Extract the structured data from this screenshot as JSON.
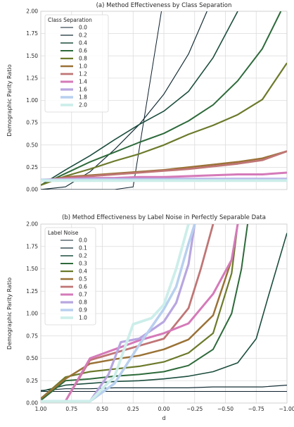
{
  "chart_data": [
    {
      "type": "line",
      "title": "(a) Method Effectiveness by Class Separation",
      "ylabel": "Demographic Parity Ratio",
      "xlabel": "",
      "ylim": [
        0,
        2.0
      ],
      "xlim": [
        1.0,
        -1.0
      ],
      "x_inverted": true,
      "grid": true,
      "yticks": [
        "0.00",
        "0.25",
        "0.50",
        "0.75",
        "1.00",
        "1.25",
        "1.50",
        "1.75",
        "2.00"
      ],
      "ytick_values": [
        0,
        0.25,
        0.5,
        0.75,
        1.0,
        1.25,
        1.5,
        1.75,
        2.0
      ],
      "xticks": [],
      "legend": {
        "title": "Class Separation",
        "placement": "top-left"
      },
      "series": [
        {
          "name": "0.0",
          "color": "#0d1f2d",
          "width": 1.0,
          "points": [
            [
              1.0,
              0.0
            ],
            [
              0.8,
              0.0
            ],
            [
              0.6,
              0.0
            ],
            [
              0.4,
              0.0
            ],
            [
              0.25,
              0.03
            ],
            [
              0.02,
              2.0
            ]
          ]
        },
        {
          "name": "0.2",
          "color": "#142d35",
          "width": 1.2,
          "points": [
            [
              1.0,
              0.0
            ],
            [
              0.8,
              0.03
            ],
            [
              0.6,
              0.2
            ],
            [
              0.4,
              0.45
            ],
            [
              0.2,
              0.73
            ],
            [
              0.0,
              1.07
            ],
            [
              -0.2,
              1.52
            ],
            [
              -0.35,
              2.0
            ]
          ]
        },
        {
          "name": "0.4",
          "color": "#1b4d3e",
          "width": 1.6,
          "points": [
            [
              1.0,
              0.05
            ],
            [
              0.8,
              0.22
            ],
            [
              0.6,
              0.38
            ],
            [
              0.4,
              0.56
            ],
            [
              0.2,
              0.73
            ],
            [
              0.0,
              0.88
            ],
            [
              -0.2,
              1.1
            ],
            [
              -0.4,
              1.48
            ],
            [
              -0.6,
              2.0
            ]
          ]
        },
        {
          "name": "0.6",
          "color": "#2d6a3a",
          "width": 2.0,
          "points": [
            [
              1.0,
              0.05
            ],
            [
              0.8,
              0.18
            ],
            [
              0.6,
              0.31
            ],
            [
              0.4,
              0.42
            ],
            [
              0.2,
              0.53
            ],
            [
              0.0,
              0.63
            ],
            [
              -0.2,
              0.77
            ],
            [
              -0.4,
              0.95
            ],
            [
              -0.6,
              1.22
            ],
            [
              -0.8,
              1.58
            ],
            [
              -0.95,
              2.0
            ]
          ]
        },
        {
          "name": "0.8",
          "color": "#6b7a2a",
          "width": 2.2,
          "points": [
            [
              1.0,
              0.05
            ],
            [
              0.8,
              0.15
            ],
            [
              0.6,
              0.23
            ],
            [
              0.4,
              0.32
            ],
            [
              0.2,
              0.4
            ],
            [
              0.0,
              0.5
            ],
            [
              -0.2,
              0.62
            ],
            [
              -0.4,
              0.72
            ],
            [
              -0.6,
              0.84
            ],
            [
              -0.8,
              1.01
            ],
            [
              -1.0,
              1.42
            ]
          ]
        },
        {
          "name": "1.0",
          "color": "#9a7236",
          "width": 2.5,
          "points": [
            [
              1.0,
              0.1
            ],
            [
              0.8,
              0.14
            ],
            [
              0.6,
              0.16
            ],
            [
              0.4,
              0.18
            ],
            [
              0.2,
              0.2
            ],
            [
              0.0,
              0.22
            ],
            [
              -0.2,
              0.25
            ],
            [
              -0.4,
              0.28
            ],
            [
              -0.6,
              0.31
            ],
            [
              -0.8,
              0.35
            ],
            [
              -1.0,
              0.43
            ]
          ]
        },
        {
          "name": "1.2",
          "color": "#c07575",
          "width": 2.8,
          "points": [
            [
              1.0,
              0.1
            ],
            [
              0.8,
              0.13
            ],
            [
              0.6,
              0.15
            ],
            [
              0.4,
              0.17
            ],
            [
              0.2,
              0.19
            ],
            [
              0.0,
              0.21
            ],
            [
              -0.2,
              0.23
            ],
            [
              -0.4,
              0.26
            ],
            [
              -0.6,
              0.29
            ],
            [
              -0.8,
              0.33
            ],
            [
              -1.0,
              0.43
            ]
          ]
        },
        {
          "name": "1.4",
          "color": "#d57ab9",
          "width": 3.0,
          "points": [
            [
              1.0,
              0.11
            ],
            [
              0.8,
              0.12
            ],
            [
              0.6,
              0.13
            ],
            [
              0.4,
              0.13
            ],
            [
              0.2,
              0.14
            ],
            [
              0.0,
              0.14
            ],
            [
              -0.2,
              0.15
            ],
            [
              -0.4,
              0.16
            ],
            [
              -0.6,
              0.17
            ],
            [
              -0.8,
              0.17
            ],
            [
              -1.0,
              0.19
            ]
          ]
        },
        {
          "name": "1.6",
          "color": "#b8a6e0",
          "width": 3.2,
          "points": [
            [
              1.0,
              0.11
            ],
            [
              0.8,
              0.11
            ],
            [
              0.6,
              0.12
            ],
            [
              0.4,
              0.12
            ],
            [
              0.2,
              0.12
            ],
            [
              0.0,
              0.12
            ],
            [
              -0.2,
              0.12
            ],
            [
              -0.4,
              0.12
            ],
            [
              -0.6,
              0.12
            ],
            [
              -0.8,
              0.12
            ],
            [
              -1.0,
              0.12
            ]
          ]
        },
        {
          "name": "1.8",
          "color": "#b8d0ef",
          "width": 3.5,
          "points": [
            [
              1.0,
              0.11
            ],
            [
              0.8,
              0.11
            ],
            [
              0.6,
              0.11
            ],
            [
              0.4,
              0.11
            ],
            [
              0.2,
              0.11
            ],
            [
              0.0,
              0.11
            ],
            [
              -0.2,
              0.11
            ],
            [
              -0.4,
              0.11
            ],
            [
              -0.6,
              0.11
            ],
            [
              -0.8,
              0.11
            ],
            [
              -1.0,
              0.11
            ]
          ]
        },
        {
          "name": "2.0",
          "color": "#cdeeea",
          "width": 3.8,
          "points": [
            [
              1.0,
              0.1
            ],
            [
              0.8,
              0.1
            ],
            [
              0.6,
              0.1
            ],
            [
              0.4,
              0.1
            ],
            [
              0.2,
              0.1
            ],
            [
              0.0,
              0.1
            ],
            [
              -0.2,
              0.1
            ],
            [
              -0.4,
              0.1
            ],
            [
              -0.6,
              0.1
            ],
            [
              -0.8,
              0.1
            ],
            [
              -1.0,
              0.1
            ]
          ]
        }
      ]
    },
    {
      "type": "line",
      "title": "(b) Method Effectiveness by Label Noise in Perfectly Separable Data",
      "ylabel": "Demographic Parity Ratio",
      "xlabel": "d",
      "ylim": [
        0,
        2.0
      ],
      "xlim": [
        1.0,
        -1.0
      ],
      "x_inverted": true,
      "grid": true,
      "yticks": [
        "0.00",
        "0.25",
        "0.50",
        "0.75",
        "1.00",
        "1.25",
        "1.50",
        "1.75",
        "2.00"
      ],
      "ytick_values": [
        0,
        0.25,
        0.5,
        0.75,
        1.0,
        1.25,
        1.5,
        1.75,
        2.0
      ],
      "xticks": [
        "1.00",
        "0.75",
        "0.50",
        "0.25",
        "0.00",
        "−0.25",
        "−0.50",
        "−0.75",
        "−1.00"
      ],
      "xtick_values": [
        1.0,
        0.75,
        0.5,
        0.25,
        0.0,
        -0.25,
        -0.5,
        -0.75,
        -1.0
      ],
      "legend": {
        "title": "Label Noise",
        "placement": "top-left"
      },
      "series": [
        {
          "name": "0.0",
          "color": "#0d1f2d",
          "width": 1.0,
          "points": [
            [
              1.0,
              0.13
            ],
            [
              0.8,
              0.13
            ],
            [
              0.6,
              0.13
            ],
            [
              0.4,
              0.13
            ],
            [
              0.2,
              0.13
            ],
            [
              0.0,
              0.13
            ],
            [
              -0.2,
              0.13
            ],
            [
              -0.4,
              0.13
            ],
            [
              -0.6,
              0.13
            ],
            [
              -0.8,
              0.13
            ],
            [
              -1.0,
              0.13
            ]
          ]
        },
        {
          "name": "0.1",
          "color": "#142d35",
          "width": 1.2,
          "points": [
            [
              1.0,
              0.14
            ],
            [
              0.8,
              0.16
            ],
            [
              0.6,
              0.16
            ],
            [
              0.4,
              0.17
            ],
            [
              0.2,
              0.17
            ],
            [
              0.0,
              0.17
            ],
            [
              -0.2,
              0.17
            ],
            [
              -0.4,
              0.18
            ],
            [
              -0.6,
              0.18
            ],
            [
              -0.8,
              0.18
            ],
            [
              -1.0,
              0.2
            ]
          ]
        },
        {
          "name": "0.2",
          "color": "#1b4d3e",
          "width": 1.6,
          "points": [
            [
              1.0,
              0.13
            ],
            [
              0.8,
              0.2
            ],
            [
              0.6,
              0.22
            ],
            [
              0.4,
              0.24
            ],
            [
              0.2,
              0.25
            ],
            [
              0.0,
              0.27
            ],
            [
              -0.2,
              0.3
            ],
            [
              -0.4,
              0.35
            ],
            [
              -0.6,
              0.45
            ],
            [
              -0.75,
              0.72
            ],
            [
              -0.85,
              1.2
            ],
            [
              -1.0,
              1.9
            ]
          ]
        },
        {
          "name": "0.3",
          "color": "#2d6a3a",
          "width": 2.0,
          "points": [
            [
              1.0,
              0.03
            ],
            [
              0.8,
              0.25
            ],
            [
              0.6,
              0.27
            ],
            [
              0.4,
              0.3
            ],
            [
              0.2,
              0.32
            ],
            [
              0.0,
              0.35
            ],
            [
              -0.2,
              0.42
            ],
            [
              -0.4,
              0.6
            ],
            [
              -0.55,
              1.0
            ],
            [
              -0.63,
              1.5
            ],
            [
              -0.68,
              2.0
            ]
          ]
        },
        {
          "name": "0.4",
          "color": "#6b7a2a",
          "width": 2.2,
          "points": [
            [
              1.0,
              0.05
            ],
            [
              0.8,
              0.29
            ],
            [
              0.6,
              0.35
            ],
            [
              0.4,
              0.38
            ],
            [
              0.2,
              0.41
            ],
            [
              0.0,
              0.46
            ],
            [
              -0.2,
              0.56
            ],
            [
              -0.4,
              0.78
            ],
            [
              -0.55,
              1.45
            ],
            [
              -0.6,
              2.0
            ]
          ]
        },
        {
          "name": "0.5",
          "color": "#9a7236",
          "width": 2.5,
          "points": [
            [
              1.0,
              0.05
            ],
            [
              0.8,
              0.27
            ],
            [
              0.6,
              0.44
            ],
            [
              0.4,
              0.49
            ],
            [
              0.2,
              0.53
            ],
            [
              0.0,
              0.6
            ],
            [
              -0.2,
              0.71
            ],
            [
              -0.4,
              0.98
            ],
            [
              -0.55,
              1.6
            ],
            [
              -0.6,
              2.0
            ]
          ]
        },
        {
          "name": "0.6",
          "color": "#c07575",
          "width": 2.8,
          "points": [
            [
              1.0,
              0.02
            ],
            [
              0.8,
              0.02
            ],
            [
              0.6,
              0.48
            ],
            [
              0.4,
              0.56
            ],
            [
              0.2,
              0.64
            ],
            [
              0.0,
              0.72
            ],
            [
              -0.2,
              1.06
            ],
            [
              -0.3,
              1.5
            ],
            [
              -0.4,
              2.0
            ]
          ]
        },
        {
          "name": "0.7",
          "color": "#d57ab9",
          "width": 3.0,
          "points": [
            [
              1.0,
              0.02
            ],
            [
              0.8,
              0.02
            ],
            [
              0.6,
              0.5
            ],
            [
              0.4,
              0.6
            ],
            [
              0.2,
              0.7
            ],
            [
              0.0,
              0.78
            ],
            [
              -0.2,
              0.89
            ],
            [
              -0.4,
              1.22
            ],
            [
              -0.55,
              1.6
            ],
            [
              -0.6,
              2.0
            ]
          ]
        },
        {
          "name": "0.8",
          "color": "#b8a6e0",
          "width": 3.2,
          "points": [
            [
              1.0,
              0.02
            ],
            [
              0.8,
              0.02
            ],
            [
              0.6,
              0.02
            ],
            [
              0.45,
              0.32
            ],
            [
              0.35,
              0.68
            ],
            [
              0.2,
              0.72
            ],
            [
              0.0,
              0.91
            ],
            [
              -0.1,
              1.12
            ],
            [
              -0.2,
              1.55
            ],
            [
              -0.25,
              2.0
            ]
          ]
        },
        {
          "name": "0.9",
          "color": "#b8d0ef",
          "width": 3.5,
          "points": [
            [
              1.0,
              0.02
            ],
            [
              0.8,
              0.02
            ],
            [
              0.6,
              0.02
            ],
            [
              0.4,
              0.22
            ],
            [
              0.2,
              0.65
            ],
            [
              0.0,
              1.05
            ],
            [
              -0.1,
              1.3
            ],
            [
              -0.2,
              1.78
            ],
            [
              -0.25,
              2.0
            ]
          ]
        },
        {
          "name": "1.0",
          "color": "#cdeeea",
          "width": 3.8,
          "points": [
            [
              1.0,
              0.02
            ],
            [
              0.8,
              0.02
            ],
            [
              0.6,
              0.02
            ],
            [
              0.4,
              0.3
            ],
            [
              0.25,
              0.88
            ],
            [
              0.1,
              0.95
            ],
            [
              0.0,
              1.1
            ],
            [
              -0.1,
              1.5
            ],
            [
              -0.2,
              2.0
            ]
          ]
        }
      ]
    }
  ]
}
